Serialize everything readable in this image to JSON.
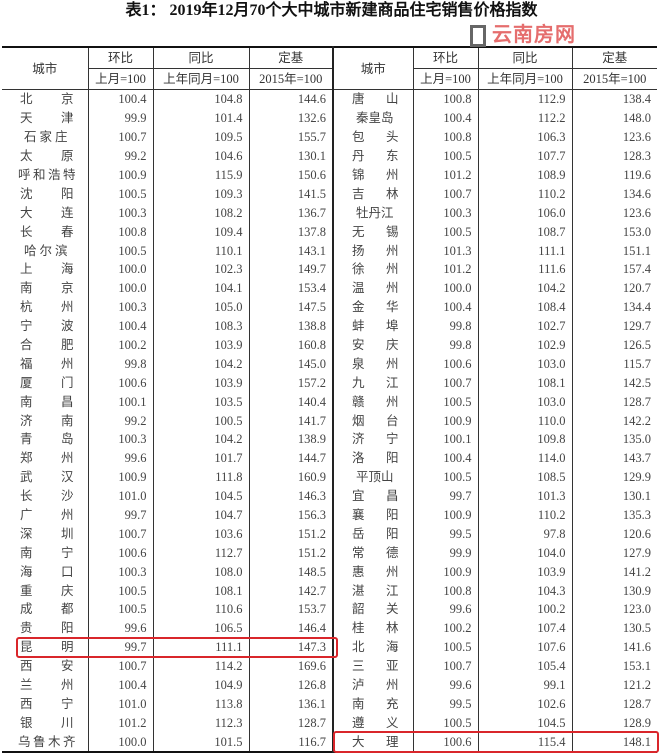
{
  "title": "表1： 2019年12月70个大中城市新建商品住宅销售价格指数",
  "headers": {
    "city": "城市",
    "mom": "环比",
    "yoy": "同比",
    "base": "定基",
    "mom_sub": "上月=100",
    "yoy_sub": "上年同月=100",
    "base_sub": "2015年=100"
  },
  "highlight_color": "#d9262b",
  "watermark": "云南房网",
  "left": [
    [
      "北京",
      "100.4",
      "104.8",
      "144.6"
    ],
    [
      "天津",
      "99.9",
      "101.4",
      "132.6"
    ],
    [
      "石家庄",
      "100.7",
      "109.5",
      "155.7"
    ],
    [
      "太原",
      "99.2",
      "104.6",
      "130.1"
    ],
    [
      "呼和浩特",
      "100.9",
      "115.9",
      "150.6"
    ],
    [
      "沈阳",
      "100.5",
      "109.3",
      "141.5"
    ],
    [
      "大连",
      "100.3",
      "108.2",
      "136.7"
    ],
    [
      "长春",
      "100.8",
      "109.4",
      "137.8"
    ],
    [
      "哈尔滨",
      "100.5",
      "110.1",
      "143.1"
    ],
    [
      "上海",
      "100.0",
      "102.3",
      "149.7"
    ],
    [
      "南京",
      "100.0",
      "104.1",
      "153.4"
    ],
    [
      "杭州",
      "100.3",
      "105.0",
      "147.5"
    ],
    [
      "宁波",
      "100.4",
      "108.3",
      "138.8"
    ],
    [
      "合肥",
      "100.2",
      "103.9",
      "160.8"
    ],
    [
      "福州",
      "99.8",
      "104.2",
      "145.0"
    ],
    [
      "厦门",
      "100.6",
      "103.9",
      "157.2"
    ],
    [
      "南昌",
      "100.1",
      "103.5",
      "140.4"
    ],
    [
      "济南",
      "99.2",
      "100.5",
      "141.7"
    ],
    [
      "青岛",
      "100.3",
      "104.2",
      "138.9"
    ],
    [
      "郑州",
      "99.6",
      "101.7",
      "144.7"
    ],
    [
      "武汉",
      "100.9",
      "111.8",
      "160.9"
    ],
    [
      "长沙",
      "101.0",
      "104.5",
      "146.3"
    ],
    [
      "广州",
      "99.7",
      "104.7",
      "156.3"
    ],
    [
      "深圳",
      "100.7",
      "103.6",
      "151.2"
    ],
    [
      "南宁",
      "100.6",
      "112.7",
      "151.2"
    ],
    [
      "海口",
      "100.3",
      "108.0",
      "148.5"
    ],
    [
      "重庆",
      "100.5",
      "108.1",
      "142.7"
    ],
    [
      "成都",
      "100.5",
      "110.6",
      "153.7"
    ],
    [
      "贵阳",
      "99.6",
      "106.5",
      "146.4"
    ],
    [
      "昆明",
      "99.7",
      "111.1",
      "147.3"
    ],
    [
      "西安",
      "100.7",
      "114.2",
      "169.6"
    ],
    [
      "兰州",
      "100.4",
      "104.9",
      "126.8"
    ],
    [
      "西宁",
      "101.0",
      "113.8",
      "136.1"
    ],
    [
      "银川",
      "101.2",
      "112.3",
      "128.7"
    ],
    [
      "乌鲁木齐",
      "100.0",
      "101.5",
      "116.7"
    ]
  ],
  "right": [
    [
      "唐山",
      "100.8",
      "112.9",
      "138.4"
    ],
    [
      "秦皇岛",
      "100.4",
      "112.2",
      "148.0"
    ],
    [
      "包头",
      "100.8",
      "106.3",
      "123.6"
    ],
    [
      "丹东",
      "100.5",
      "107.7",
      "128.3"
    ],
    [
      "锦州",
      "101.2",
      "108.9",
      "119.6"
    ],
    [
      "吉林",
      "100.7",
      "110.2",
      "134.6"
    ],
    [
      "牡丹江",
      "100.3",
      "106.0",
      "123.6"
    ],
    [
      "无锡",
      "100.5",
      "108.7",
      "153.0"
    ],
    [
      "扬州",
      "101.3",
      "111.1",
      "151.1"
    ],
    [
      "徐州",
      "101.2",
      "111.6",
      "157.4"
    ],
    [
      "温州",
      "100.0",
      "104.2",
      "120.7"
    ],
    [
      "金华",
      "100.4",
      "108.4",
      "134.4"
    ],
    [
      "蚌埠",
      "99.8",
      "102.7",
      "129.7"
    ],
    [
      "安庆",
      "99.8",
      "102.9",
      "126.5"
    ],
    [
      "泉州",
      "100.6",
      "103.0",
      "115.7"
    ],
    [
      "九江",
      "100.7",
      "108.1",
      "142.5"
    ],
    [
      "赣州",
      "100.5",
      "103.0",
      "128.7"
    ],
    [
      "烟台",
      "100.9",
      "110.0",
      "142.2"
    ],
    [
      "济宁",
      "100.1",
      "109.8",
      "135.0"
    ],
    [
      "洛阳",
      "100.4",
      "114.0",
      "143.7"
    ],
    [
      "平顶山",
      "100.5",
      "108.5",
      "129.9"
    ],
    [
      "宜昌",
      "99.7",
      "101.3",
      "130.1"
    ],
    [
      "襄阳",
      "100.9",
      "110.2",
      "135.3"
    ],
    [
      "岳阳",
      "99.5",
      "97.8",
      "120.6"
    ],
    [
      "常德",
      "99.9",
      "104.0",
      "127.9"
    ],
    [
      "惠州",
      "100.9",
      "103.9",
      "141.2"
    ],
    [
      "湛江",
      "100.8",
      "104.3",
      "130.9"
    ],
    [
      "韶关",
      "99.6",
      "100.2",
      "123.0"
    ],
    [
      "桂林",
      "100.2",
      "107.4",
      "130.5"
    ],
    [
      "北海",
      "100.5",
      "107.6",
      "141.6"
    ],
    [
      "三亚",
      "100.7",
      "105.4",
      "153.1"
    ],
    [
      "泸州",
      "99.6",
      "99.1",
      "121.2"
    ],
    [
      "南充",
      "99.5",
      "102.6",
      "128.7"
    ],
    [
      "遵义",
      "100.5",
      "104.5",
      "128.9"
    ],
    [
      "大理",
      "100.6",
      "115.4",
      "148.1"
    ]
  ]
}
